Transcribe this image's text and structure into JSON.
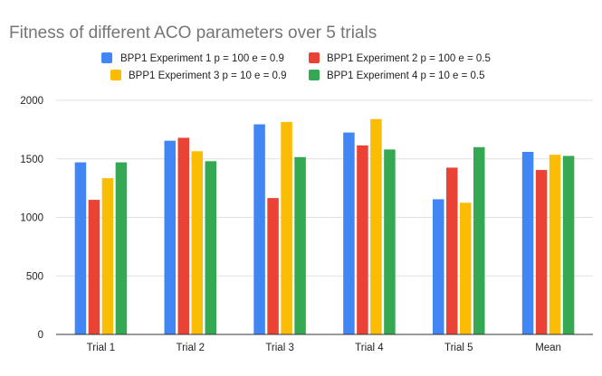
{
  "chart_data": {
    "type": "bar",
    "title": "Fitness of different ACO parameters over 5 trials",
    "xlabel": "",
    "ylabel": "",
    "categories": [
      "Trial 1",
      "Trial 2",
      "Trial 3",
      "Trial 4",
      "Trial 5",
      "Mean"
    ],
    "ylim": [
      0,
      2000
    ],
    "yticks": [
      0,
      500,
      1000,
      1500,
      2000
    ],
    "grid": true,
    "legend_position": "top",
    "series": [
      {
        "name": "BPP1 Experiment 1 p = 100 e = 0.9",
        "color": "#4285f4",
        "values": [
          1470,
          1655,
          1795,
          1725,
          1155,
          1560
        ]
      },
      {
        "name": "BPP1 Experiment 2 p = 100 e = 0.5",
        "color": "#ea4335",
        "values": [
          1150,
          1680,
          1165,
          1615,
          1425,
          1405
        ]
      },
      {
        "name": "BPP1 Experiment 3 p = 10 e = 0.9",
        "color": "#fbbc04",
        "values": [
          1335,
          1565,
          1815,
          1840,
          1125,
          1535
        ]
      },
      {
        "name": "BPP1 Experiment 4 p = 10 e = 0.5",
        "color": "#34a853",
        "values": [
          1470,
          1480,
          1515,
          1580,
          1600,
          1525
        ]
      }
    ]
  }
}
